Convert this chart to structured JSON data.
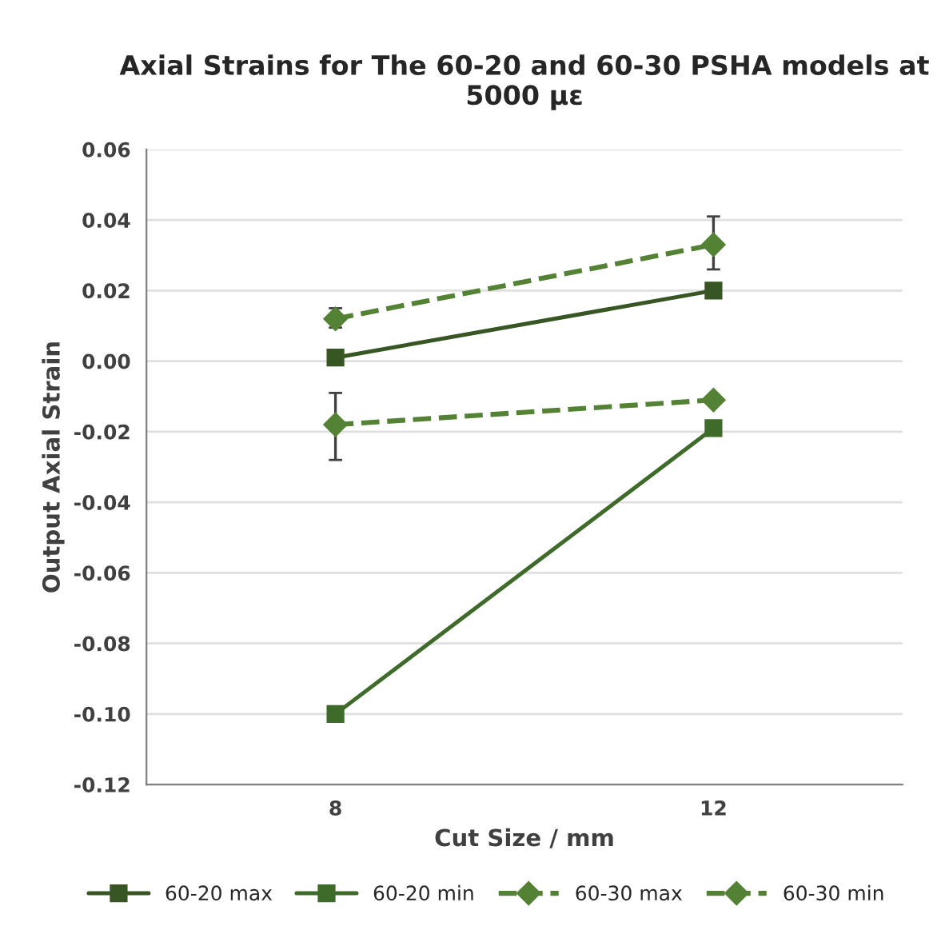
{
  "chart_data": {
    "type": "line",
    "title": "Axial Strains for The 60-20 and 60-30 PSHA models at 5000 με",
    "xlabel": "Cut Size / mm",
    "ylabel": "Output Axial Strain",
    "categories": [
      "8",
      "12"
    ],
    "series": [
      {
        "name": "60-20 max",
        "color": "#375623",
        "values": [
          0.001,
          0.02
        ],
        "marker": "square",
        "line_style": "solid"
      },
      {
        "name": "60-20 min",
        "color": "#3e6b2a",
        "values": [
          -0.1,
          -0.019
        ],
        "marker": "square",
        "line_style": "solid"
      },
      {
        "name": "60-30 max",
        "color": "#548235",
        "values": [
          0.012,
          0.033
        ],
        "marker": "diamond",
        "line_style": "dashed",
        "errors": [
          [
            0.0095,
            0.015
          ],
          [
            0.026,
            0.041
          ]
        ]
      },
      {
        "name": "60-30 min",
        "color": "#548235",
        "values": [
          -0.018,
          -0.011
        ],
        "marker": "diamond",
        "line_style": "dashed",
        "errors": [
          [
            -0.028,
            -0.009
          ],
          null
        ]
      }
    ],
    "ylim": [
      -0.12,
      0.06
    ],
    "yticks": [
      {
        "value": -0.12,
        "label": "-0.12"
      },
      {
        "value": -0.1,
        "label": "-0.10"
      },
      {
        "value": -0.08,
        "label": "-0.08"
      },
      {
        "value": -0.06,
        "label": "-0.06"
      },
      {
        "value": -0.04,
        "label": "-0.04"
      },
      {
        "value": -0.02,
        "label": "-0.02"
      },
      {
        "value": 0,
        "label": "0.00"
      },
      {
        "value": 0.02,
        "label": "0.02"
      },
      {
        "value": 0.04,
        "label": "0.04"
      },
      {
        "value": 0.06,
        "label": "0.06"
      }
    ],
    "grid": "y",
    "legend": "bottom"
  }
}
